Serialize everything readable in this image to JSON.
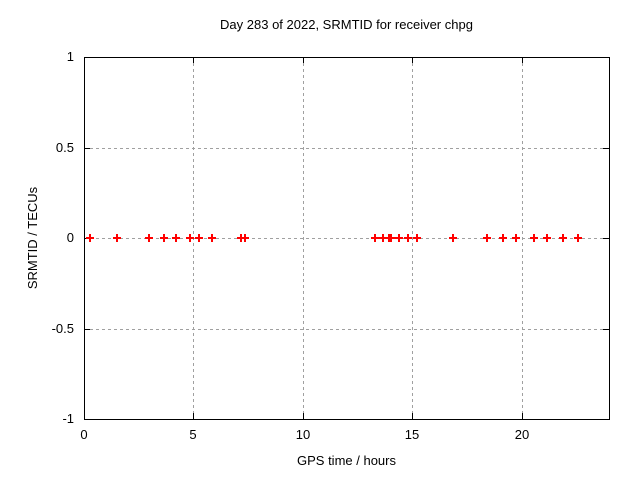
{
  "page": {
    "background": "#ffffff"
  },
  "chart_data": {
    "type": "scatter",
    "title": "Day 283 of 2022, SRMTID for receiver chpg",
    "xlabel": "GPS time / hours",
    "ylabel": "SRMTID / TECUs",
    "xlim": [
      0,
      24
    ],
    "ylim": [
      -1,
      1
    ],
    "xticks": [
      0,
      5,
      10,
      15,
      20
    ],
    "xtick_labels": [
      "0",
      "5",
      "10",
      "15",
      "20"
    ],
    "yticks": [
      1,
      0.5,
      0,
      -0.5,
      -1
    ],
    "ytick_labels": [
      "1",
      "0.5",
      "0",
      "-0.5",
      "-1"
    ],
    "grid": true,
    "grid_x": [
      5,
      10,
      15,
      20
    ],
    "grid_y": [
      0.5,
      0,
      -0.5
    ],
    "legend": "none",
    "marker": "plus",
    "marker_color": "#ff0000",
    "grid_color": "#a0a0a0",
    "axis_color": "#000000",
    "series": [
      {
        "name": "SRMTID",
        "x": [
          0.27,
          1.51,
          2.97,
          3.66,
          4.21,
          4.85,
          5.26,
          5.85,
          7.18,
          7.36,
          13.3,
          13.67,
          13.95,
          13.99,
          14.03,
          14.41,
          14.82,
          15.22,
          16.88,
          18.41,
          19.17,
          19.75,
          20.57,
          21.18,
          21.88,
          22.6
        ],
        "y": [
          0,
          0,
          0,
          0,
          0,
          0,
          0,
          0,
          0,
          0,
          0,
          0,
          0,
          0,
          0,
          0,
          0,
          0,
          0,
          0,
          0,
          0,
          0,
          0,
          0,
          0
        ]
      }
    ]
  }
}
